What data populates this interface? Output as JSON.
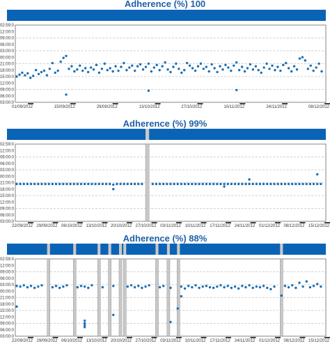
{
  "colors": {
    "bar": "#0b63b6",
    "gap": "#c8c8c8",
    "point": "#1a6fb5",
    "grid": "#a0a0a0",
    "axis": "#666666"
  },
  "chart_data": [
    {
      "type": "scatter",
      "title": "Adherence (%) 100",
      "y_ticks": [
        "02:59:0",
        "12:00:0",
        "09:00:0",
        "06:00:0",
        "03:00:0",
        "00:00:0",
        "21:00:0",
        "18:00:0",
        "15:00:0",
        "12:00:0",
        "09:00:0",
        "06:00:0",
        "03:00:0"
      ],
      "x_ticks": [
        "01/09/2012",
        "15/09/2012",
        "29/09/2012",
        "13/10/2012",
        "27/10/2012",
        "10/11/2012",
        "24/11/2012",
        "08/12/2012"
      ],
      "x_range": [
        0,
        112
      ],
      "gaps": [],
      "points": [
        [
          0,
          4.0
        ],
        [
          1,
          4.3
        ],
        [
          2,
          4.6
        ],
        [
          3,
          4.2
        ],
        [
          4,
          4.5
        ],
        [
          5,
          3.8
        ],
        [
          6,
          4.1
        ],
        [
          7,
          5.0
        ],
        [
          8,
          4.4
        ],
        [
          9,
          4.7
        ],
        [
          10,
          4.9
        ],
        [
          11,
          4.2
        ],
        [
          12,
          5.2
        ],
        [
          13,
          6.1
        ],
        [
          14,
          4.6
        ],
        [
          15,
          4.9
        ],
        [
          16,
          6.3
        ],
        [
          17,
          6.9
        ],
        [
          18,
          7.2
        ],
        [
          19,
          5.2
        ],
        [
          20,
          5.6
        ],
        [
          21,
          4.8
        ],
        [
          22,
          5.1
        ],
        [
          23,
          5.7
        ],
        [
          24,
          4.9
        ],
        [
          25,
          5.3
        ],
        [
          26,
          4.7
        ],
        [
          27,
          5.4
        ],
        [
          28,
          5.1
        ],
        [
          29,
          5.8
        ],
        [
          30,
          4.6
        ],
        [
          31,
          5.2
        ],
        [
          32,
          6.0
        ],
        [
          33,
          5.0
        ],
        [
          34,
          5.3
        ],
        [
          35,
          4.8
        ],
        [
          36,
          5.6
        ],
        [
          37,
          4.9
        ],
        [
          38,
          5.5
        ],
        [
          39,
          6.1
        ],
        [
          40,
          5.0
        ],
        [
          41,
          5.4
        ],
        [
          42,
          5.7
        ],
        [
          43,
          4.9
        ],
        [
          44,
          5.6
        ],
        [
          45,
          5.9
        ],
        [
          46,
          5.1
        ],
        [
          47,
          5.5
        ],
        [
          48,
          6.0
        ],
        [
          49,
          4.8
        ],
        [
          50,
          5.4
        ],
        [
          51,
          5.8
        ],
        [
          52,
          5.0
        ],
        [
          53,
          5.6
        ],
        [
          54,
          6.2
        ],
        [
          55,
          5.1
        ],
        [
          56,
          4.7
        ],
        [
          57,
          5.5
        ],
        [
          58,
          6.0
        ],
        [
          59,
          5.2
        ],
        [
          60,
          4.6
        ],
        [
          61,
          5.0
        ],
        [
          62,
          6.1
        ],
        [
          63,
          5.7
        ],
        [
          64,
          5.3
        ],
        [
          65,
          4.9
        ],
        [
          66,
          5.6
        ],
        [
          67,
          6.0
        ],
        [
          68,
          5.2
        ],
        [
          69,
          5.5
        ],
        [
          70,
          4.8
        ],
        [
          71,
          5.9
        ],
        [
          72,
          5.3
        ],
        [
          73,
          4.7
        ],
        [
          74,
          5.6
        ],
        [
          75,
          5.1
        ],
        [
          76,
          5.8
        ],
        [
          77,
          5.4
        ],
        [
          78,
          4.9
        ],
        [
          79,
          5.7
        ],
        [
          80,
          6.2
        ],
        [
          81,
          5.0
        ],
        [
          82,
          5.5
        ],
        [
          83,
          4.8
        ],
        [
          84,
          5.3
        ],
        [
          85,
          5.9
        ],
        [
          86,
          5.1
        ],
        [
          87,
          5.6
        ],
        [
          88,
          5.0
        ],
        [
          89,
          4.6
        ],
        [
          90,
          5.4
        ],
        [
          91,
          6.0
        ],
        [
          92,
          5.2
        ],
        [
          93,
          5.7
        ],
        [
          94,
          5.0
        ],
        [
          95,
          5.5
        ],
        [
          96,
          4.9
        ],
        [
          97,
          5.8
        ],
        [
          98,
          6.1
        ],
        [
          99,
          5.3
        ],
        [
          100,
          4.8
        ],
        [
          101,
          5.6
        ],
        [
          102,
          5.1
        ],
        [
          103,
          6.8
        ],
        [
          104,
          7.0
        ],
        [
          105,
          6.5
        ],
        [
          106,
          5.2
        ],
        [
          107,
          5.7
        ],
        [
          108,
          4.9
        ],
        [
          109,
          5.4
        ],
        [
          110,
          6.0
        ],
        [
          111,
          4.8
        ],
        [
          18,
          1.2
        ],
        [
          48,
          1.8
        ],
        [
          80,
          1.9
        ]
      ]
    },
    {
      "type": "scatter",
      "title": "Adherence (%) 99%",
      "y_ticks": [
        "02:59:0",
        "12:00:0",
        "09:00:0",
        "06:00:0",
        "03:00:0",
        "00:00:0",
        "21:00:0",
        "18:00:0",
        "15:00:0",
        "12:00:0",
        "09:00:0",
        "06:00:0",
        "03:00:0"
      ],
      "x_ticks": [
        "22/09/2012",
        "29/09/2012",
        "06/10/2012",
        "13/10/2012",
        "20/10/2012",
        "27/10/2012",
        "03/11/2012",
        "10/11/2012",
        "17/11/2012",
        "24/11/2012",
        "01/12/2012",
        "08/12/2012",
        "15/12/2012"
      ],
      "x_range": [
        0,
        86
      ],
      "gaps": [
        [
          36,
          37
        ]
      ],
      "points": [
        [
          0,
          5.8
        ],
        [
          1,
          5.8
        ],
        [
          2,
          5.8
        ],
        [
          3,
          5.8
        ],
        [
          4,
          5.8
        ],
        [
          5,
          5.8
        ],
        [
          6,
          5.8
        ],
        [
          7,
          5.8
        ],
        [
          8,
          5.8
        ],
        [
          9,
          5.8
        ],
        [
          10,
          5.8
        ],
        [
          11,
          5.8
        ],
        [
          12,
          5.8
        ],
        [
          13,
          5.8
        ],
        [
          14,
          5.8
        ],
        [
          15,
          5.8
        ],
        [
          16,
          5.8
        ],
        [
          17,
          5.8
        ],
        [
          18,
          5.8
        ],
        [
          19,
          5.8
        ],
        [
          20,
          5.8
        ],
        [
          21,
          5.8
        ],
        [
          22,
          5.8
        ],
        [
          23,
          5.8
        ],
        [
          24,
          5.8
        ],
        [
          25,
          5.8
        ],
        [
          26,
          5.8
        ],
        [
          27,
          5.7
        ],
        [
          28,
          5.8
        ],
        [
          29,
          5.8
        ],
        [
          30,
          5.8
        ],
        [
          31,
          5.8
        ],
        [
          32,
          5.8
        ],
        [
          33,
          5.8
        ],
        [
          34,
          5.8
        ],
        [
          35,
          5.8
        ],
        [
          38,
          5.8
        ],
        [
          39,
          5.8
        ],
        [
          40,
          5.8
        ],
        [
          41,
          5.8
        ],
        [
          42,
          5.8
        ],
        [
          43,
          5.8
        ],
        [
          44,
          5.8
        ],
        [
          45,
          5.8
        ],
        [
          46,
          5.8
        ],
        [
          47,
          5.8
        ],
        [
          48,
          5.8
        ],
        [
          49,
          5.8
        ],
        [
          50,
          5.8
        ],
        [
          51,
          5.8
        ],
        [
          52,
          5.8
        ],
        [
          53,
          5.8
        ],
        [
          54,
          5.8
        ],
        [
          55,
          5.8
        ],
        [
          56,
          5.8
        ],
        [
          57,
          5.8
        ],
        [
          58,
          5.8
        ],
        [
          59,
          5.8
        ],
        [
          60,
          5.8
        ],
        [
          61,
          5.8
        ],
        [
          62,
          5.8
        ],
        [
          63,
          5.8
        ],
        [
          64,
          5.8
        ],
        [
          65,
          5.8
        ],
        [
          66,
          5.8
        ],
        [
          67,
          5.8
        ],
        [
          68,
          5.8
        ],
        [
          69,
          5.8
        ],
        [
          70,
          5.8
        ],
        [
          71,
          5.8
        ],
        [
          72,
          5.8
        ],
        [
          73,
          5.8
        ],
        [
          74,
          5.8
        ],
        [
          75,
          5.8
        ],
        [
          76,
          5.8
        ],
        [
          77,
          5.8
        ],
        [
          78,
          5.8
        ],
        [
          79,
          5.8
        ],
        [
          80,
          5.8
        ],
        [
          81,
          5.8
        ],
        [
          82,
          5.8
        ],
        [
          83,
          5.8
        ],
        [
          84,
          5.8
        ],
        [
          85,
          5.8
        ],
        [
          27,
          5.0
        ],
        [
          58,
          5.4
        ],
        [
          65,
          6.5
        ],
        [
          84,
          7.3
        ]
      ]
    },
    {
      "type": "scatter",
      "title": "Adherence (%) 88%",
      "y_ticks": [
        "02:59:0",
        "12:00:0",
        "09:00:0",
        "06:00:0",
        "03:00:0",
        "00:00:0",
        "21:00:0",
        "18:00:0",
        "15:00:0",
        "12:00:0",
        "09:00:0",
        "06:00:0",
        "03:00:0"
      ],
      "x_ticks": [
        "22/09/2012",
        "29/09/2012",
        "06/10/2012",
        "13/10/2012",
        "20/10/2012",
        "27/10/2012",
        "03/11/2012",
        "10/11/2012",
        "17/11/2012",
        "24/11/2012",
        "01/12/2012",
        "08/12/2012",
        "15/12/2012"
      ],
      "x_range": [
        0,
        86
      ],
      "gaps": [
        [
          8.5,
          9.3
        ],
        [
          15.8,
          16.6
        ],
        [
          22.6,
          23.4
        ],
        [
          25.6,
          26.4
        ],
        [
          28.6,
          29.4
        ],
        [
          29.8,
          30.6
        ],
        [
          38.8,
          39.6
        ],
        [
          42.0,
          42.8
        ],
        [
          44.8,
          45.6
        ],
        [
          73.6,
          74.4
        ]
      ],
      "points": [
        [
          0,
          7.8
        ],
        [
          1,
          7.7
        ],
        [
          2,
          7.9
        ],
        [
          3,
          7.6
        ],
        [
          4,
          7.8
        ],
        [
          5,
          7.5
        ],
        [
          6,
          7.7
        ],
        [
          7,
          7.9
        ],
        [
          10,
          7.6
        ],
        [
          11,
          7.8
        ],
        [
          12,
          7.5
        ],
        [
          13,
          7.7
        ],
        [
          14,
          7.9
        ],
        [
          17,
          7.6
        ],
        [
          18,
          7.8
        ],
        [
          19,
          7.7
        ],
        [
          20,
          7.5
        ],
        [
          21,
          7.9
        ],
        [
          24,
          7.6
        ],
        [
          27,
          7.8
        ],
        [
          31,
          7.7
        ],
        [
          32,
          7.9
        ],
        [
          33,
          7.6
        ],
        [
          34,
          7.8
        ],
        [
          35,
          7.5
        ],
        [
          36,
          7.7
        ],
        [
          37,
          7.9
        ],
        [
          40,
          7.6
        ],
        [
          41,
          7.8
        ],
        [
          43,
          7.5
        ],
        [
          46,
          7.7
        ],
        [
          47,
          7.4
        ],
        [
          48,
          7.8
        ],
        [
          49,
          7.6
        ],
        [
          50,
          7.9
        ],
        [
          51,
          7.5
        ],
        [
          52,
          7.7
        ],
        [
          53,
          7.8
        ],
        [
          54,
          7.6
        ],
        [
          55,
          7.5
        ],
        [
          56,
          7.7
        ],
        [
          57,
          7.9
        ],
        [
          58,
          7.6
        ],
        [
          59,
          7.8
        ],
        [
          60,
          7.5
        ],
        [
          61,
          7.7
        ],
        [
          62,
          7.4
        ],
        [
          63,
          7.8
        ],
        [
          64,
          7.6
        ],
        [
          65,
          7.9
        ],
        [
          66,
          7.5
        ],
        [
          67,
          7.7
        ],
        [
          68,
          7.6
        ],
        [
          69,
          7.8
        ],
        [
          70,
          7.5
        ],
        [
          71,
          7.3
        ],
        [
          72,
          7.7
        ],
        [
          75,
          7.8
        ],
        [
          76,
          7.6
        ],
        [
          77,
          7.9
        ],
        [
          78,
          7.5
        ],
        [
          79,
          8.3
        ],
        [
          80,
          7.7
        ],
        [
          81,
          8.5
        ],
        [
          82,
          7.6
        ],
        [
          83,
          7.8
        ],
        [
          84,
          8.1
        ],
        [
          85,
          7.7
        ],
        [
          0,
          4.6
        ],
        [
          19,
          2.4
        ],
        [
          19,
          2.0
        ],
        [
          19,
          1.7
        ],
        [
          19,
          1.4
        ],
        [
          27,
          3.3
        ],
        [
          43,
          2.2
        ],
        [
          45,
          4.3
        ],
        [
          46,
          6.2
        ],
        [
          74,
          6.3
        ]
      ]
    }
  ]
}
